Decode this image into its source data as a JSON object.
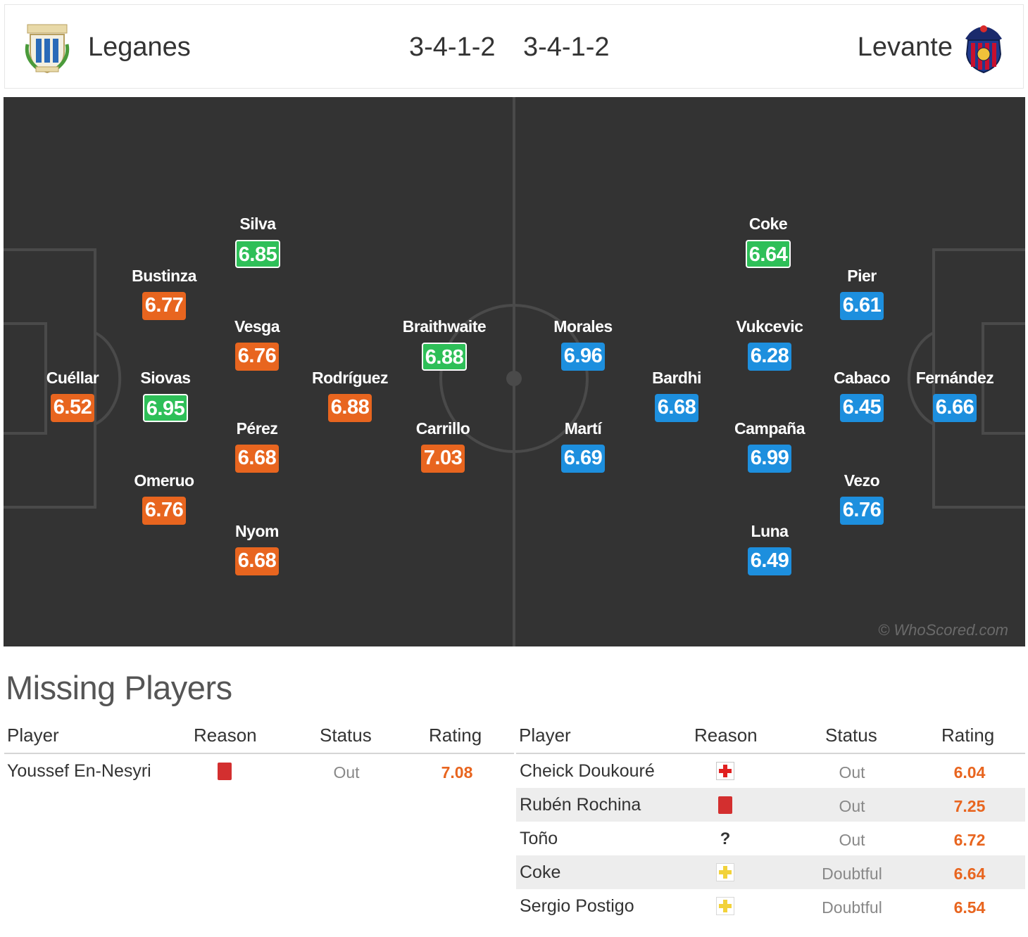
{
  "header": {
    "home_team": "Leganes",
    "away_team": "Levante",
    "home_formation": "3-4-1-2",
    "away_formation": "3-4-1-2"
  },
  "pitch": {
    "watermark": "© WhoScored.com",
    "home_players": [
      {
        "name": "Cuéllar",
        "rating": "6.52",
        "color": "orange"
      },
      {
        "name": "Bustinza",
        "rating": "6.77",
        "color": "orange"
      },
      {
        "name": "Siovas",
        "rating": "6.95",
        "color": "green"
      },
      {
        "name": "Omeruo",
        "rating": "6.76",
        "color": "orange"
      },
      {
        "name": "Silva",
        "rating": "6.85",
        "color": "green"
      },
      {
        "name": "Vesga",
        "rating": "6.76",
        "color": "orange"
      },
      {
        "name": "Pérez",
        "rating": "6.68",
        "color": "orange"
      },
      {
        "name": "Nyom",
        "rating": "6.68",
        "color": "orange"
      },
      {
        "name": "Rodríguez",
        "rating": "6.88",
        "color": "orange"
      },
      {
        "name": "Braithwaite",
        "rating": "6.88",
        "color": "green"
      },
      {
        "name": "Carrillo",
        "rating": "7.03",
        "color": "orange"
      }
    ],
    "away_players": [
      {
        "name": "Morales",
        "rating": "6.96",
        "color": "blue"
      },
      {
        "name": "Martí",
        "rating": "6.69",
        "color": "blue"
      },
      {
        "name": "Bardhi",
        "rating": "6.68",
        "color": "blue"
      },
      {
        "name": "Coke",
        "rating": "6.64",
        "color": "green"
      },
      {
        "name": "Vukcevic",
        "rating": "6.28",
        "color": "blue"
      },
      {
        "name": "Campaña",
        "rating": "6.99",
        "color": "blue"
      },
      {
        "name": "Luna",
        "rating": "6.49",
        "color": "blue"
      },
      {
        "name": "Pier",
        "rating": "6.61",
        "color": "blue"
      },
      {
        "name": "Cabaco",
        "rating": "6.45",
        "color": "blue"
      },
      {
        "name": "Vezo",
        "rating": "6.76",
        "color": "blue"
      },
      {
        "name": "Fernández",
        "rating": "6.66",
        "color": "blue"
      }
    ]
  },
  "missing": {
    "title": "Missing Players",
    "columns": {
      "player": "Player",
      "reason": "Reason",
      "status": "Status",
      "rating": "Rating"
    },
    "home": [
      {
        "player": "Youssef En-Nesyri",
        "reason_icon": "red-card-icon",
        "status": "Out",
        "rating": "7.08"
      }
    ],
    "away": [
      {
        "player": "Cheick Doukouré",
        "reason_icon": "injury-icon",
        "status": "Out",
        "rating": "6.04"
      },
      {
        "player": "Rubén Rochina",
        "reason_icon": "red-card-icon",
        "status": "Out",
        "rating": "7.25"
      },
      {
        "player": "Toño",
        "reason_icon": "unknown-icon",
        "reason_glyph": "?",
        "status": "Out",
        "rating": "6.72"
      },
      {
        "player": "Coke",
        "reason_icon": "doubtful-icon",
        "status": "Doubtful",
        "rating": "6.64"
      },
      {
        "player": "Sergio Postigo",
        "reason_icon": "doubtful-icon",
        "status": "Doubtful",
        "rating": "6.54"
      }
    ]
  },
  "colors": {
    "pitch": "#333333",
    "orange": "#e8651f",
    "blue": "#1d8fde",
    "green": "#2ebf58"
  }
}
